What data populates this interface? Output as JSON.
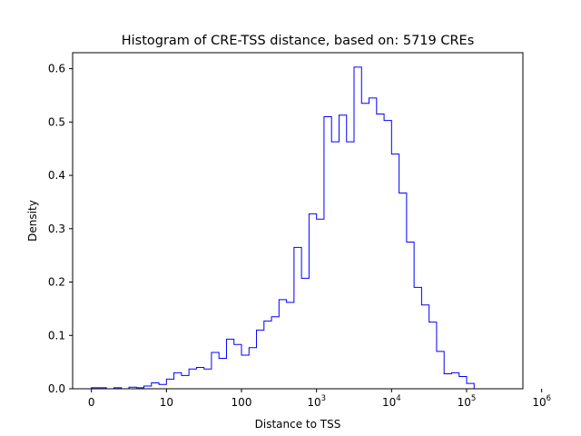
{
  "chart_data": {
    "type": "histogram-step",
    "title": "Histogram of CRE-TSS distance, based on: 5719 CREs",
    "xlabel": "Distance to TSS",
    "ylabel": "Density",
    "x_scale": "symlog",
    "xlim_decades": [
      -0.25,
      5.75
    ],
    "ylim": [
      0,
      0.63
    ],
    "series_color": "#0000ff",
    "grid": false,
    "x_ticks": [
      {
        "base": "0",
        "exp": "",
        "pos": 0
      },
      {
        "base": "10",
        "exp": "",
        "pos": 1
      },
      {
        "base": "100",
        "exp": "",
        "pos": 2
      },
      {
        "base": "10",
        "exp": "3",
        "pos": 3
      },
      {
        "base": "10",
        "exp": "4",
        "pos": 4
      },
      {
        "base": "10",
        "exp": "5",
        "pos": 5
      },
      {
        "base": "10",
        "exp": "6",
        "pos": 6
      }
    ],
    "y_ticks": [
      {
        "label": "0.0",
        "value": 0.0
      },
      {
        "label": "0.1",
        "value": 0.1
      },
      {
        "label": "0.2",
        "value": 0.2
      },
      {
        "label": "0.3",
        "value": 0.3
      },
      {
        "label": "0.4",
        "value": 0.4
      },
      {
        "label": "0.5",
        "value": 0.5
      },
      {
        "label": "0.6",
        "value": 0.6
      }
    ],
    "bin_start_decade": 0.0,
    "bin_width_decades": 0.1,
    "densities": [
      0.002,
      0.002,
      0.0,
      0.002,
      0.0,
      0.003,
      0.002,
      0.005,
      0.011,
      0.008,
      0.018,
      0.03,
      0.025,
      0.037,
      0.04,
      0.037,
      0.068,
      0.057,
      0.093,
      0.083,
      0.063,
      0.077,
      0.11,
      0.127,
      0.135,
      0.167,
      0.162,
      0.265,
      0.207,
      0.328,
      0.318,
      0.51,
      0.463,
      0.513,
      0.463,
      0.603,
      0.535,
      0.545,
      0.515,
      0.503,
      0.44,
      0.367,
      0.275,
      0.19,
      0.157,
      0.125,
      0.07,
      0.028,
      0.03,
      0.023,
      0.01,
      0.0
    ]
  }
}
